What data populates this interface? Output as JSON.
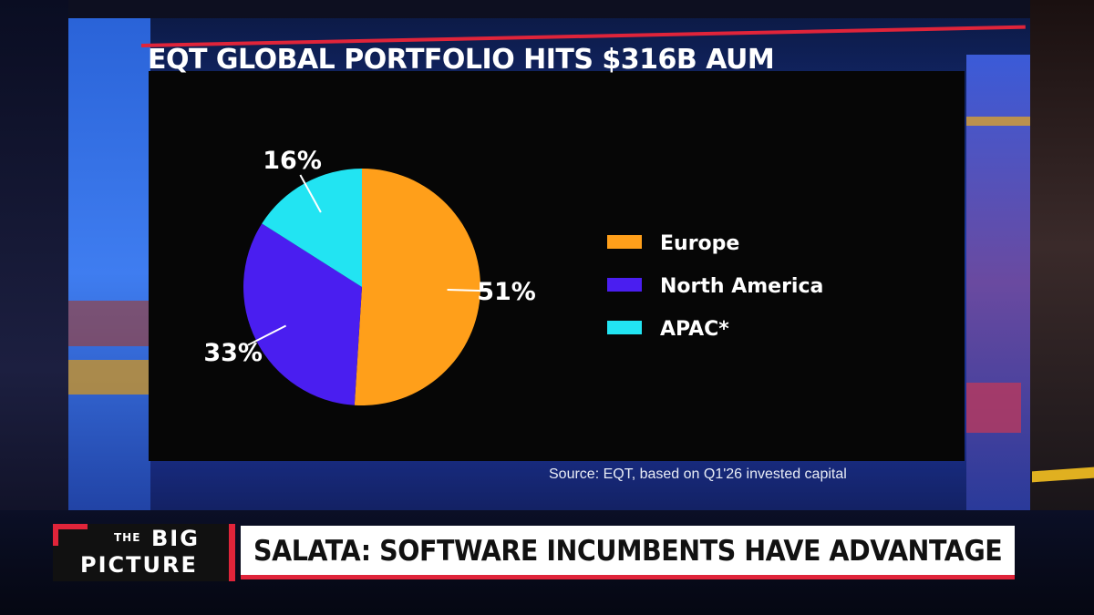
{
  "title": "EQT GLOBAL PORTFOLIO HITS $316B AUM",
  "source": "Source: EQT, based on Q1'26 invested capital",
  "lower_third": {
    "brand_the": "THE",
    "brand_big": "BIG",
    "brand_picture": "PICTURE",
    "headline": "SALATA: SOFTWARE INCUMBENTS HAVE ADVANTAGE"
  },
  "colors": {
    "europe": "#ff9f1a",
    "north_america": "#4a1ef0",
    "apac": "#22e4f2",
    "accent": "#e0243a"
  },
  "chart_data": {
    "type": "pie",
    "title": "EQT GLOBAL PORTFOLIO HITS $316B AUM",
    "legend_position": "right",
    "series": [
      {
        "name": "Europe",
        "value": 51,
        "label": "51%",
        "color": "#ff9f1a"
      },
      {
        "name": "North America",
        "value": 33,
        "label": "33%",
        "color": "#4a1ef0"
      },
      {
        "name": "APAC*",
        "value": 16,
        "label": "16%",
        "color": "#22e4f2"
      }
    ]
  }
}
